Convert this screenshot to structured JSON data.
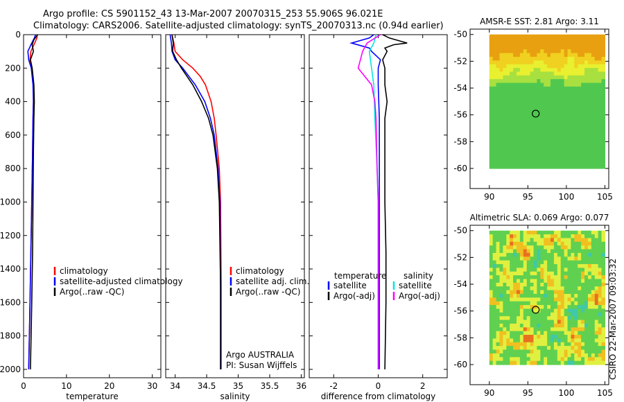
{
  "title_line1": "Argo profile: CS 5901152_43 13-Mar-2007 20070315_253 55.906S 96.021E",
  "title_line2": "Climatology: CARS2006. Satellite-adjusted climatology: synTS_20070313.nc (0.94d earlier)",
  "side_label": "CSIRO 22-Mar-2007 09:03:32",
  "colors": {
    "red": "#ff0000",
    "blue": "#0000ff",
    "black": "#000000",
    "cyan": "#00e5e5",
    "magenta": "#ff00ff"
  },
  "chart_data": [
    {
      "type": "line",
      "name": "temperature",
      "xlabel": "temperature",
      "ylabel": "",
      "xlim": [
        0,
        32
      ],
      "ylim": [
        2050,
        0
      ],
      "x_ticks": [
        0,
        10,
        20,
        30
      ],
      "y_ticks": [
        0,
        200,
        400,
        600,
        800,
        1000,
        1200,
        1400,
        1600,
        1800,
        2000
      ],
      "legend": [
        "climatology",
        "satellite-adjusted climatology",
        "Argo(..raw -QC)"
      ],
      "series": [
        {
          "name": "climatology",
          "color": "#ff0000",
          "depth": [
            0,
            20,
            50,
            100,
            150,
            200,
            300,
            400,
            500,
            700,
            1000,
            1300,
            1600,
            2000
          ],
          "values": [
            3.2,
            3.1,
            2.6,
            1.7,
            1.5,
            1.9,
            2.3,
            2.3,
            2.2,
            2.1,
            1.9,
            1.7,
            1.5,
            1.2
          ]
        },
        {
          "name": "satellite-adjusted climatology",
          "color": "#0000ff",
          "depth": [
            0,
            20,
            50,
            100,
            150,
            200,
            300,
            400,
            500,
            700,
            1000,
            1300,
            1600,
            2000
          ],
          "values": [
            2.8,
            2.5,
            1.9,
            1.0,
            1.2,
            1.8,
            2.2,
            2.3,
            2.2,
            2.1,
            1.9,
            1.7,
            1.5,
            1.2
          ]
        },
        {
          "name": "Argo(..raw -QC)",
          "color": "#000000",
          "depth": [
            0,
            10,
            30,
            60,
            100,
            150,
            200,
            300,
            400,
            500,
            700,
            1000,
            1300,
            1600,
            2000
          ],
          "values": [
            3.3,
            3.0,
            2.4,
            2.0,
            2.3,
            1.6,
            2.0,
            2.4,
            2.5,
            2.4,
            2.3,
            2.2,
            2.1,
            1.9,
            1.6
          ]
        }
      ],
      "annotation": []
    },
    {
      "type": "line",
      "name": "salinity",
      "xlabel": "salinity",
      "ylabel": "",
      "xlim": [
        33.85,
        36.05
      ],
      "ylim": [
        2050,
        0
      ],
      "x_ticks": [
        34,
        34.5,
        35,
        35.5,
        36
      ],
      "legend": [
        "climatology",
        "satellite adj. clim.",
        "Argo(..raw -QC)"
      ],
      "series": [
        {
          "name": "climatology",
          "color": "#ff0000",
          "depth": [
            0,
            50,
            100,
            150,
            200,
            250,
            300,
            400,
            500,
            600,
            800,
            1000,
            1500,
            2000
          ],
          "values": [
            33.95,
            33.98,
            34.0,
            34.12,
            34.28,
            34.4,
            34.48,
            34.57,
            34.62,
            34.65,
            34.7,
            34.72,
            34.73,
            34.73
          ]
        },
        {
          "name": "satellite adj. clim.",
          "color": "#0000ff",
          "depth": [
            0,
            50,
            100,
            150,
            200,
            300,
            400,
            500,
            600,
            800,
            1000,
            1500,
            2000
          ],
          "values": [
            33.92,
            33.94,
            33.95,
            34.0,
            34.12,
            34.32,
            34.47,
            34.56,
            34.62,
            34.68,
            34.71,
            34.72,
            34.72
          ]
        },
        {
          "name": "Argo(..raw -QC)",
          "color": "#000000",
          "depth": [
            0,
            50,
            100,
            150,
            200,
            300,
            400,
            500,
            600,
            800,
            1000,
            1500,
            2000
          ],
          "values": [
            33.95,
            33.97,
            33.96,
            34.02,
            34.1,
            34.28,
            34.42,
            34.53,
            34.6,
            34.67,
            34.7,
            34.72,
            34.72
          ]
        }
      ],
      "annotation": [
        "Argo AUSTRALIA",
        "PI: Susan Wijffels"
      ]
    },
    {
      "type": "line",
      "name": "difference",
      "xlabel": "difference from climatology",
      "ylabel": "",
      "xlim": [
        -3.1,
        3.1
      ],
      "ylim": [
        2050,
        0
      ],
      "x_ticks": [
        -2,
        0,
        2
      ],
      "legend_groups": [
        {
          "header": "temperature",
          "entries": [
            "satellite",
            "Argo(-adj)"
          ]
        },
        {
          "header": "salinity",
          "entries": [
            "satellite",
            "Argo(-adj)"
          ]
        }
      ],
      "series": [
        {
          "name": "temperature satellite",
          "color": "#0000ff",
          "depth": [
            0,
            20,
            50,
            80,
            100,
            150,
            200,
            300,
            500,
            800,
            1000,
            1500,
            2000
          ],
          "values": [
            -0.2,
            -0.4,
            -1.2,
            -0.4,
            -0.3,
            0.1,
            0.0,
            0.0,
            0.05,
            0.05,
            0.05,
            0.05,
            0.05
          ]
        },
        {
          "name": "temperature Argo(-adj)",
          "color": "#000000",
          "depth": [
            0,
            20,
            50,
            60,
            80,
            100,
            150,
            200,
            300,
            400,
            500,
            700,
            1000,
            1300,
            1600,
            2000
          ],
          "values": [
            0.2,
            0.5,
            1.3,
            0.7,
            0.3,
            0.4,
            0.2,
            0.3,
            0.3,
            0.4,
            0.3,
            0.3,
            0.3,
            0.35,
            0.35,
            0.3
          ]
        },
        {
          "name": "salinity satellite",
          "color": "#00e5e5",
          "depth": [
            0,
            50,
            100,
            200,
            300,
            500,
            800,
            1000,
            1500,
            2000
          ],
          "values": [
            -0.1,
            -0.2,
            -0.4,
            -0.3,
            -0.2,
            -0.15,
            -0.05,
            0.0,
            0.0,
            0.0
          ]
        },
        {
          "name": "salinity Argo(-adj)",
          "color": "#ff00ff",
          "depth": [
            0,
            50,
            100,
            200,
            250,
            300,
            400,
            500,
            800,
            1000,
            1500,
            2000
          ],
          "values": [
            0.1,
            -0.5,
            -0.7,
            -0.9,
            -0.6,
            -0.3,
            -0.15,
            -0.1,
            -0.05,
            0.0,
            0.0,
            0.0
          ]
        }
      ]
    },
    {
      "type": "heatmap",
      "name": "sst-map",
      "title": "AMSR-E SST: 2.81 Argo: 3.11",
      "xlim": [
        87.5,
        105.5
      ],
      "ylim": [
        -61.5,
        -49.6
      ],
      "x_ticks": [
        90,
        95,
        100,
        105
      ],
      "y_ticks": [
        -50,
        -52,
        -54,
        -56,
        -58,
        -60
      ],
      "extent": {
        "lon": [
          90,
          105
        ],
        "lat": [
          -60,
          -50
        ]
      },
      "float": {
        "lon": 96.02,
        "lat": -55.91
      }
    },
    {
      "type": "heatmap",
      "name": "sla-map",
      "title": "Altimetric SLA: 0.069 Argo: 0.077",
      "xlim": [
        87.5,
        105.5
      ],
      "ylim": [
        -61.5,
        -49.6
      ],
      "x_ticks": [
        90,
        95,
        100,
        105
      ],
      "y_ticks": [
        -50,
        -52,
        -54,
        -56,
        -58,
        -60
      ],
      "extent": {
        "lon": [
          90,
          105
        ],
        "lat": [
          -60,
          -50
        ]
      },
      "float": {
        "lon": 96.02,
        "lat": -55.91
      }
    }
  ]
}
